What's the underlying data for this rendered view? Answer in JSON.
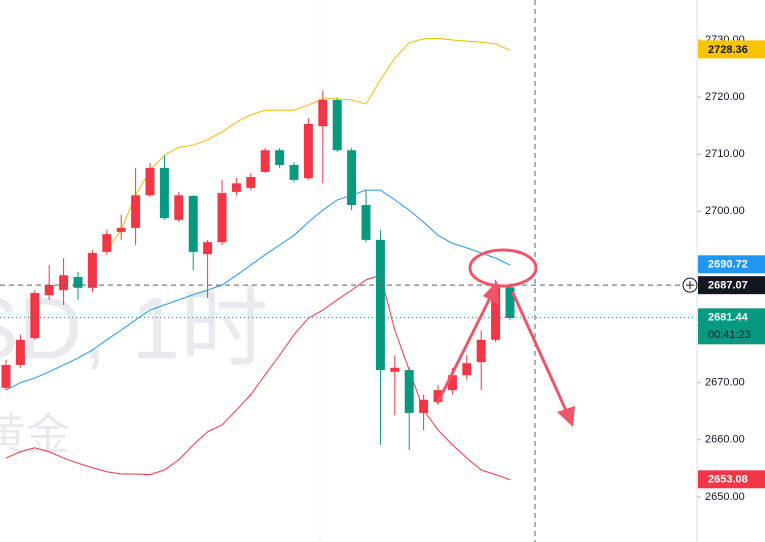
{
  "chart_data": {
    "type": "candlestick",
    "watermark": [
      "SD, 1时",
      "黄金"
    ],
    "up_color": "#f23645",
    "down_color": "#089981",
    "open": [
      2669.1,
      2673.1,
      2677.8,
      2685.3,
      2686.2,
      2688.5,
      2686.6,
      2692.9,
      2696.4,
      2697.1,
      2702.8,
      2707.6,
      2698.5,
      2702.7,
      2692.5,
      2694.6,
      2703.4,
      2704.1,
      2706.9,
      2710.7,
      2708.1,
      2705.8,
      2714.9,
      2719.5,
      2710.7,
      2701.1,
      2695.0,
      2671.9,
      2672.2,
      2664.7,
      2666.6,
      2668.7,
      2671.3,
      2673.6,
      2677.5,
      2686.7
    ],
    "high": [
      2674.0,
      2678.4,
      2686.2,
      2690.6,
      2691.8,
      2689.4,
      2693.2,
      2696.7,
      2699.4,
      2707.6,
      2708.5,
      2709.8,
      2703.4,
      2702.8,
      2695.0,
      2705.5,
      2705.8,
      2706.7,
      2711.1,
      2711.1,
      2708.6,
      2716.3,
      2721.2,
      2719.8,
      2711.1,
      2703.7,
      2696.7,
      2674.8,
      2672.6,
      2667.9,
      2669.6,
      2672.6,
      2674.8,
      2679.2,
      2688.0,
      2687.4
    ],
    "low": [
      2668.7,
      2672.6,
      2677.5,
      2684.5,
      2683.6,
      2684.5,
      2685.9,
      2692.4,
      2695.0,
      2694.1,
      2702.5,
      2698.5,
      2698.1,
      2689.7,
      2684.8,
      2694.1,
      2702.8,
      2703.7,
      2706.7,
      2707.6,
      2705.1,
      2705.5,
      2704.9,
      2710.4,
      2700.2,
      2694.6,
      2659.1,
      2664.3,
      2658.2,
      2661.7,
      2666.1,
      2667.9,
      2670.5,
      2668.7,
      2677.1,
      2681.0
    ],
    "close": [
      2673.1,
      2677.5,
      2685.7,
      2687.1,
      2688.8,
      2686.6,
      2692.7,
      2696.0,
      2697.1,
      2702.8,
      2707.6,
      2698.8,
      2702.8,
      2692.9,
      2694.6,
      2703.2,
      2704.9,
      2706.0,
      2710.7,
      2708.1,
      2705.5,
      2715.3,
      2719.5,
      2710.7,
      2701.1,
      2695.0,
      2672.2,
      2672.6,
      2664.7,
      2667.0,
      2668.7,
      2671.3,
      2673.4,
      2677.5,
      2686.7,
      2681.3
    ],
    "series": [
      {
        "color": "#f5b700",
        "values": [
          null,
          null,
          null,
          null,
          null,
          null,
          null,
          2693.2,
          2696.7,
          2702.8,
          2707.2,
          2709.8,
          2711.2,
          2711.6,
          2712.5,
          2713.9,
          2715.6,
          2716.9,
          2717.7,
          2717.7,
          2717.7,
          2718.6,
          2719.7,
          2719.7,
          2719.5,
          2718.8,
          2723.0,
          2726.8,
          2729.5,
          2730.2,
          2730.3,
          2730.0,
          2729.8,
          2729.6,
          2729.3,
          2728.2
        ]
      },
      {
        "color": "#2196f3",
        "values": [
          2668.7,
          2670.0,
          2670.8,
          2671.9,
          2673.1,
          2674.3,
          2675.7,
          2677.5,
          2679.2,
          2681.0,
          2682.7,
          2683.6,
          2684.5,
          2685.4,
          2686.2,
          2687.1,
          2688.8,
          2690.6,
          2692.4,
          2694.1,
          2695.8,
          2698.1,
          2700.2,
          2702.0,
          2702.8,
          2703.7,
          2703.7,
          2702.0,
          2700.2,
          2698.1,
          2695.8,
          2694.4,
          2693.6,
          2692.7,
          2691.8,
          2690.6
        ]
      },
      {
        "color": "#f23645",
        "values": [
          2656.8,
          2657.9,
          2658.6,
          2657.9,
          2656.8,
          2655.9,
          2655.1,
          2654.4,
          2654.0,
          2654.0,
          2653.9,
          2654.7,
          2656.5,
          2659.1,
          2661.4,
          2662.6,
          2665.2,
          2667.9,
          2671.4,
          2674.8,
          2678.4,
          2681.3,
          2682.7,
          2684.5,
          2686.2,
          2688.0,
          2688.8,
          2679.2,
          2672.2,
          2665.2,
          2661.7,
          2659.1,
          2656.8,
          2654.7,
          2653.9,
          2653.0
        ]
      }
    ],
    "ylim": [
      2642.1,
      2737.0
    ],
    "yticks": [
      {
        "value": 2650,
        "label": "2650.00"
      },
      {
        "value": 2660,
        "label": "2660.00"
      },
      {
        "value": 2670,
        "label": "2670.00"
      },
      {
        "value": 2680,
        "label": "2680.00"
      },
      {
        "value": 2690,
        "label": "2690.00"
      },
      {
        "value": 2700,
        "label": "2700.00"
      },
      {
        "value": 2710,
        "label": "2710.00"
      },
      {
        "value": 2720,
        "label": "2720.00"
      },
      {
        "value": 2730,
        "label": "2730.00"
      }
    ],
    "price_labels": [
      {
        "value": 2728.36,
        "color": "#f7c600",
        "text_color": "#131722"
      },
      {
        "value": 2690.72,
        "color": "#2196f3",
        "text_color": "#ffffff"
      },
      {
        "value": 2681.44,
        "color": "#089981",
        "text_color": "#ffffff"
      },
      {
        "value": 2653.08,
        "color": "#f23645",
        "text_color": "#ffffff"
      }
    ],
    "crosshair_price": 2687.07,
    "countdown": "00:41:23"
  }
}
